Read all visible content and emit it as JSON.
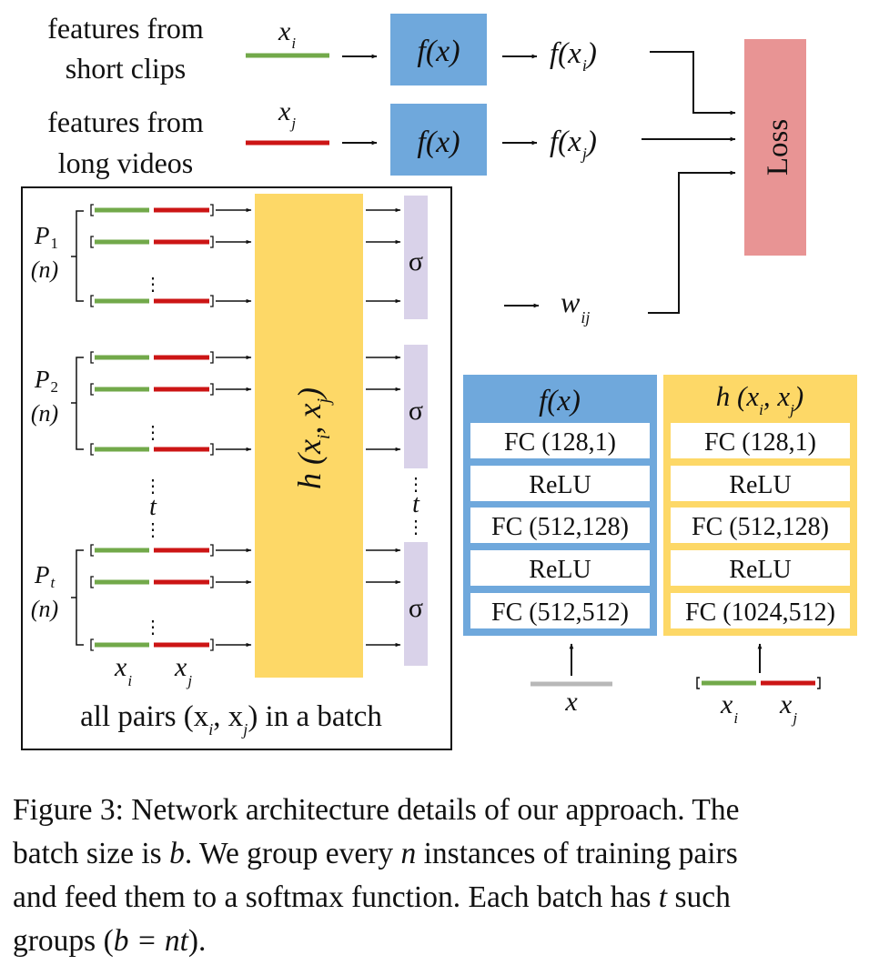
{
  "top": {
    "short_line1": "features from",
    "short_line2": "short clips",
    "long_line1": "features from",
    "long_line2": "long videos",
    "xi_base": "x",
    "xi_sub": "i",
    "xj_base": "x",
    "xj_sub": "j",
    "fx_box": "f(x)",
    "fxi_base": "f(x",
    "fxi_close": ")",
    "fxj_base": "f(x",
    "fxj_close": ")",
    "w_base": "w",
    "w_sub": "ij",
    "loss": "Loss"
  },
  "pairs_panel": {
    "groups": [
      {
        "base": "P",
        "sub": "1",
        "n": "(n)"
      },
      {
        "base": "P",
        "sub": "2",
        "n": "(n)"
      },
      {
        "base": "P",
        "sub": "t",
        "n": "(n)"
      }
    ],
    "dots": "⋮",
    "t_label": "t",
    "h_base": "h (x",
    "h_comma": ", x",
    "h_close": ")",
    "h_sub_i": "i",
    "h_sub_j": "j",
    "sigma": "σ",
    "xi_base": "x",
    "xi_sub": "i",
    "xj_base": "x",
    "xj_sub": "j",
    "bottom_pre": "all pairs (x",
    "bottom_sub_i": "i",
    "bottom_mid": ", x",
    "bottom_sub_j": "j",
    "bottom_post": ") in a batch"
  },
  "f_net": {
    "title": "f(x)",
    "layers": [
      "FC (128,1)",
      "ReLU",
      "FC (512,128)",
      "ReLU",
      "FC (512,512)"
    ],
    "input": "x"
  },
  "h_net": {
    "title_pre": "h (x",
    "title_sub_i": "i",
    "title_mid": ", x",
    "title_sub_j": "j",
    "title_close": ")",
    "layers": [
      "FC (128,1)",
      "ReLU",
      "FC (512,128)",
      "ReLU",
      "FC (1024,512)"
    ],
    "input_i_base": "x",
    "input_i_sub": "i",
    "input_j_base": "x",
    "input_j_sub": "j"
  },
  "caption": {
    "p1": "Figure 3: Network architecture details of our approach. The",
    "p2a": "batch size is ",
    "p2b": "b",
    "p2c": ". We group every ",
    "p2d": "n",
    "p2e": " instances of training pairs",
    "p3a": "and feed them to a softmax function. Each batch has ",
    "p3b": "t",
    "p3c": " such",
    "p4a": "groups (",
    "p4b": "b = nt",
    "p4c": ")."
  },
  "colors": {
    "green": "#72a94a",
    "red": "#cc1515",
    "blue": "#6fa8dc",
    "yellow": "#fdd867",
    "lavender": "#d9d2e9",
    "loss": "#e89494",
    "gray": "#b8b8b8"
  }
}
